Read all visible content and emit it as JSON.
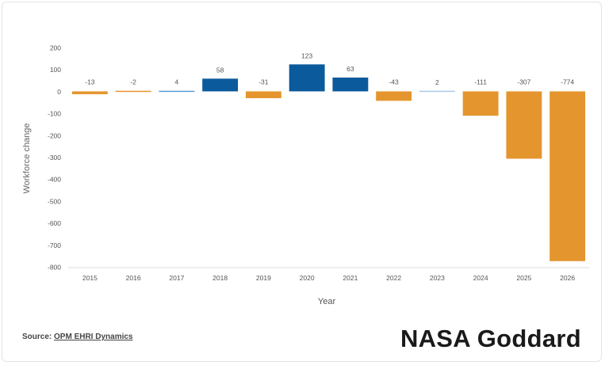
{
  "chart_data": {
    "type": "bar",
    "title": "",
    "xlabel": "Year",
    "ylabel": "Workforce change",
    "ylim": [
      -800,
      200
    ],
    "yticks": [
      200,
      100,
      0,
      -100,
      -200,
      -300,
      -400,
      -500,
      -600,
      -700,
      -800
    ],
    "categories": [
      "2015",
      "2016",
      "2017",
      "2018",
      "2019",
      "2020",
      "2021",
      "2022",
      "2023",
      "2024",
      "2025",
      "2026"
    ],
    "values": [
      -13,
      -2,
      4,
      58,
      -31,
      123,
      63,
      -43,
      2,
      -111,
      -307,
      -774
    ],
    "data_labels": [
      "-13",
      "-2",
      "4",
      "58",
      "-31",
      "123",
      "63",
      "-43",
      "2",
      "-111",
      "-307",
      "-774"
    ],
    "colors": {
      "negative": "#e5952e",
      "positive_large": "#0b5a9c",
      "positive_small": "#5b9bd5",
      "positive_tiny": "#a9c8e6"
    },
    "grid": false,
    "legend": "none"
  },
  "footer": {
    "source_label": "Source:",
    "source_link": "OPM EHRI Dynamics",
    "brand": "NASA Goddard"
  }
}
